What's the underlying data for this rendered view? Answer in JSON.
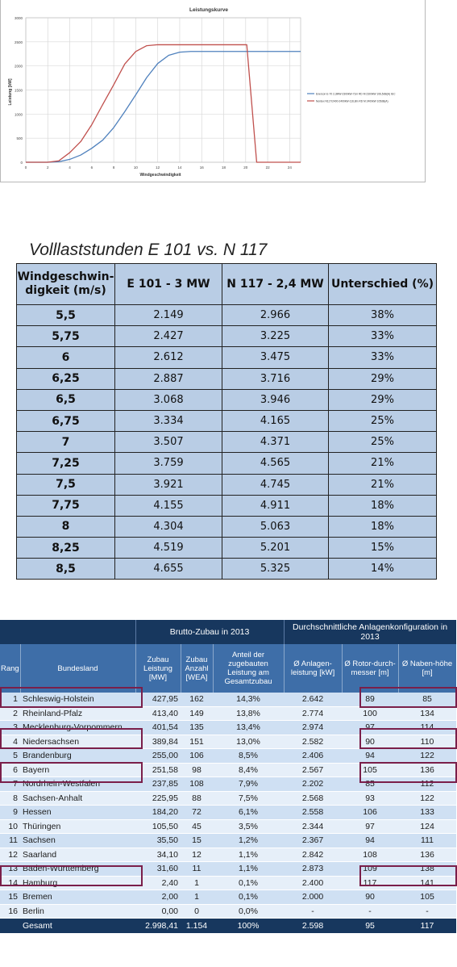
{
  "chart_data": {
    "type": "line",
    "title": "Leistungskurve",
    "xlabel": "Windgeschwindigkeit",
    "ylabel": "Leistung [kW]",
    "xlim": [
      0,
      25
    ],
    "ylim": [
      0,
      3000
    ],
    "xticks": [
      0,
      2,
      4,
      6,
      8,
      10,
      12,
      14,
      16,
      18,
      20,
      22,
      24
    ],
    "yticks": [
      0,
      500,
      1000,
      1500,
      2000,
      2500,
      3000
    ],
    "grid": true,
    "legend_position": "right",
    "series": [
      {
        "name": "Enercon E-70 2,3MW-2300kW-71m RD M 2300kW 106,5dB(A) IEC",
        "color": "#4f81bd",
        "x": [
          0,
          2,
          3,
          4,
          5,
          6,
          7,
          8,
          9,
          10,
          11,
          12,
          13,
          14,
          15,
          16,
          17,
          18,
          19,
          20,
          21,
          22,
          23,
          24,
          25
        ],
        "y": [
          0,
          0,
          10,
          60,
          150,
          290,
          460,
          720,
          1050,
          1400,
          1760,
          2050,
          2220,
          2285,
          2300,
          2300,
          2300,
          2300,
          2300,
          2300,
          2300,
          2300,
          2300,
          2300,
          2300
        ]
      },
      {
        "name": "Nordex N117/2400-2400kW-116,8m RD M 2400kW 105dB(A)",
        "color": "#c0504d",
        "x": [
          0,
          2,
          3,
          4,
          5,
          6,
          7,
          8,
          9,
          10,
          11,
          12,
          13,
          14,
          15,
          16,
          17,
          18,
          19,
          20,
          20.1,
          21,
          22,
          23,
          24,
          25
        ],
        "y": [
          0,
          0,
          30,
          200,
          430,
          780,
          1200,
          1610,
          2040,
          2300,
          2420,
          2440,
          2440,
          2440,
          2440,
          2440,
          2440,
          2440,
          2440,
          2440,
          2440,
          0,
          0,
          0,
          0,
          0
        ]
      }
    ]
  },
  "table1": {
    "title": "Volllaststunden E 101 vs. N 117",
    "headers": [
      "Windgeschwin-digkeit (m/s)",
      "E 101 - 3 MW",
      "N 117 - 2,4 MW",
      "Unterschied (%)"
    ],
    "rows": [
      [
        "5,5",
        "2.149",
        "2.966",
        "38%"
      ],
      [
        "5,75",
        "2.427",
        "3.225",
        "33%"
      ],
      [
        "6",
        "2.612",
        "3.475",
        "33%"
      ],
      [
        "6,25",
        "2.887",
        "3.716",
        "29%"
      ],
      [
        "6,5",
        "3.068",
        "3.946",
        "29%"
      ],
      [
        "6,75",
        "3.334",
        "4.165",
        "25%"
      ],
      [
        "7",
        "3.507",
        "4.371",
        "25%"
      ],
      [
        "7,25",
        "3.759",
        "4.565",
        "21%"
      ],
      [
        "7,5",
        "3.921",
        "4.745",
        "21%"
      ],
      [
        "7,75",
        "4.155",
        "4.911",
        "18%"
      ],
      [
        "8",
        "4.304",
        "5.063",
        "18%"
      ],
      [
        "8,25",
        "4.519",
        "5.201",
        "15%"
      ],
      [
        "8,5",
        "4.655",
        "5.325",
        "14%"
      ]
    ]
  },
  "table2": {
    "group_headers": [
      "Brutto-Zubau in 2013",
      "Durchschnittliche Anlagenkonfiguration in 2013"
    ],
    "headers": [
      "Rang",
      "Bundesland",
      "Zubau Leistung [MW]",
      "Zubau Anzahl [WEA]",
      "Anteil der zugebauten Leistung am Gesamtzubau",
      "Ø Anlagen-leistung [kW]",
      "Ø Rotor-durch-messer [m]",
      "Ø Naben-höhe [m]"
    ],
    "rows": [
      [
        "1",
        "Schleswig-Holstein",
        "427,95",
        "162",
        "14,3%",
        "2.642",
        "89",
        "85"
      ],
      [
        "2",
        "Rheinland-Pfalz",
        "413,40",
        "149",
        "13,8%",
        "2.774",
        "100",
        "134"
      ],
      [
        "3",
        "Mecklenburg-Vorpommern",
        "401,54",
        "135",
        "13,4%",
        "2.974",
        "97",
        "114"
      ],
      [
        "4",
        "Niedersachsen",
        "389,84",
        "151",
        "13,0%",
        "2.582",
        "90",
        "110"
      ],
      [
        "5",
        "Brandenburg",
        "255,00",
        "106",
        "8,5%",
        "2.406",
        "94",
        "122"
      ],
      [
        "6",
        "Bayern",
        "251,58",
        "98",
        "8,4%",
        "2.567",
        "105",
        "136"
      ],
      [
        "7",
        "Nordrhein-Westfalen",
        "237,85",
        "108",
        "7,9%",
        "2.202",
        "85",
        "112"
      ],
      [
        "8",
        "Sachsen-Anhalt",
        "225,95",
        "88",
        "7,5%",
        "2.568",
        "93",
        "122"
      ],
      [
        "9",
        "Hessen",
        "184,20",
        "72",
        "6,1%",
        "2.558",
        "106",
        "133"
      ],
      [
        "10",
        "Thüringen",
        "105,50",
        "45",
        "3,5%",
        "2.344",
        "97",
        "124"
      ],
      [
        "11",
        "Sachsen",
        "35,50",
        "15",
        "1,2%",
        "2.367",
        "94",
        "111"
      ],
      [
        "12",
        "Saarland",
        "34,10",
        "12",
        "1,1%",
        "2.842",
        "108",
        "136"
      ],
      [
        "13",
        "Baden-Württemberg",
        "31,60",
        "11",
        "1,1%",
        "2.873",
        "109",
        "138"
      ],
      [
        "14",
        "Hamburg",
        "2,40",
        "1",
        "0,1%",
        "2.400",
        "117",
        "141"
      ],
      [
        "15",
        "Bremen",
        "2,00",
        "1",
        "0,1%",
        "2.000",
        "90",
        "105"
      ],
      [
        "16",
        "Berlin",
        "0,00",
        "0",
        "0,0%",
        "-",
        "-",
        "-"
      ]
    ],
    "total": [
      "",
      "Gesamt",
      "2.998,41",
      "1.154",
      "100%",
      "2.598",
      "95",
      "117"
    ],
    "highlight_color": "#7a1f4a"
  }
}
